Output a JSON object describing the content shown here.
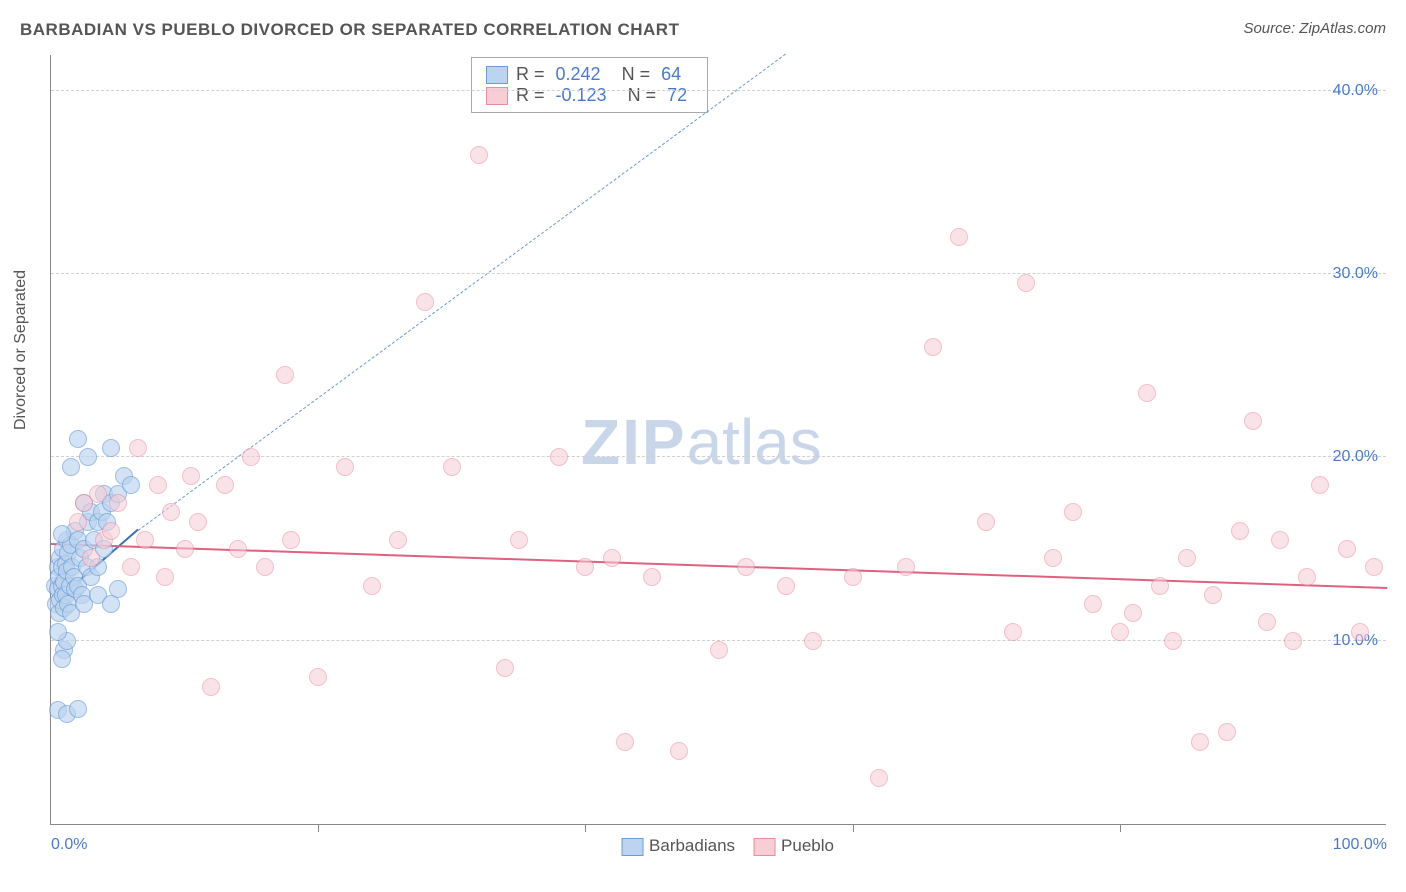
{
  "title": "BARBADIAN VS PUEBLO DIVORCED OR SEPARATED CORRELATION CHART",
  "source": "Source: ZipAtlas.com",
  "ylabel": "Divorced or Separated",
  "watermark": {
    "bold": "ZIP",
    "rest": "atlas"
  },
  "chart": {
    "type": "scatter",
    "xlim": [
      0,
      100
    ],
    "ylim": [
      0,
      42
    ],
    "yaxis_ticks": [
      10,
      20,
      30,
      40
    ],
    "yaxis_tick_labels": [
      "10.0%",
      "20.0%",
      "30.0%",
      "40.0%"
    ],
    "xaxis_ticks": [
      0,
      20,
      40,
      60,
      80,
      100
    ],
    "xaxis_tick_labels_shown": {
      "0": "0.0%",
      "100": "100.0%"
    },
    "background_color": "#ffffff",
    "grid_color": "#d0d0d0",
    "axis_color": "#888888",
    "label_color": "#4a7ac7",
    "marker_radius": 9,
    "marker_stroke_width": 1.5,
    "series": [
      {
        "name": "Barbadians",
        "fill": "#bcd4ef",
        "stroke": "#6a9bd8",
        "fill_opacity": 0.65,
        "R": "0.242",
        "N": "64",
        "trend": {
          "x1": 0.5,
          "y1": 12.2,
          "x2": 6.5,
          "y2": 16.0,
          "color": "#3a6fb5",
          "width": 2.5,
          "dash": false
        },
        "trend_ext": {
          "x1": 6.5,
          "y1": 16.0,
          "x2": 55,
          "y2": 42,
          "color": "#6a9bd8",
          "width": 1.5,
          "dash": true
        },
        "points": [
          [
            0.3,
            13.0
          ],
          [
            0.4,
            12.0
          ],
          [
            0.5,
            12.8
          ],
          [
            0.5,
            14.0
          ],
          [
            0.6,
            11.5
          ],
          [
            0.6,
            13.5
          ],
          [
            0.7,
            12.2
          ],
          [
            0.7,
            14.5
          ],
          [
            0.8,
            14.0
          ],
          [
            0.8,
            13.0
          ],
          [
            0.9,
            12.5
          ],
          [
            0.9,
            15.0
          ],
          [
            1.0,
            13.2
          ],
          [
            1.0,
            11.8
          ],
          [
            1.1,
            14.2
          ],
          [
            1.1,
            12.5
          ],
          [
            1.2,
            13.8
          ],
          [
            1.2,
            15.5
          ],
          [
            1.3,
            12.0
          ],
          [
            1.3,
            14.8
          ],
          [
            1.4,
            13.0
          ],
          [
            1.5,
            15.2
          ],
          [
            1.5,
            11.5
          ],
          [
            1.6,
            14.0
          ],
          [
            1.7,
            13.5
          ],
          [
            1.8,
            12.8
          ],
          [
            1.8,
            16.0
          ],
          [
            2.0,
            15.5
          ],
          [
            2.0,
            13.0
          ],
          [
            2.2,
            14.5
          ],
          [
            2.3,
            12.5
          ],
          [
            2.5,
            15.0
          ],
          [
            2.5,
            17.5
          ],
          [
            2.7,
            14.0
          ],
          [
            2.8,
            16.5
          ],
          [
            3.0,
            13.5
          ],
          [
            3.0,
            17.0
          ],
          [
            3.2,
            15.5
          ],
          [
            3.5,
            16.5
          ],
          [
            3.5,
            14.0
          ],
          [
            3.8,
            17.0
          ],
          [
            4.0,
            15.0
          ],
          [
            4.0,
            18.0
          ],
          [
            4.2,
            16.5
          ],
          [
            4.5,
            17.5
          ],
          [
            5.0,
            18.0
          ],
          [
            5.5,
            19.0
          ],
          [
            6.0,
            18.5
          ],
          [
            1.0,
            9.5
          ],
          [
            1.2,
            10.0
          ],
          [
            0.8,
            9.0
          ],
          [
            0.5,
            10.5
          ],
          [
            2.5,
            12.0
          ],
          [
            3.5,
            12.5
          ],
          [
            4.5,
            12.0
          ],
          [
            5.0,
            12.8
          ],
          [
            1.5,
            19.5
          ],
          [
            2.0,
            21.0
          ],
          [
            2.8,
            20.0
          ],
          [
            4.5,
            20.5
          ],
          [
            0.5,
            6.2
          ],
          [
            1.2,
            6.0
          ],
          [
            2.0,
            6.3
          ],
          [
            0.8,
            15.8
          ]
        ]
      },
      {
        "name": "Pueblo",
        "fill": "#f7cdd6",
        "stroke": "#e88ba0",
        "fill_opacity": 0.55,
        "R": "-0.123",
        "N": "72",
        "trend": {
          "x1": 0,
          "y1": 15.2,
          "x2": 100,
          "y2": 12.8,
          "color": "#e06080",
          "width": 2.5,
          "dash": false
        },
        "points": [
          [
            2.0,
            16.5
          ],
          [
            2.5,
            17.5
          ],
          [
            3.0,
            14.5
          ],
          [
            3.5,
            18.0
          ],
          [
            4.0,
            15.5
          ],
          [
            4.5,
            16.0
          ],
          [
            5.0,
            17.5
          ],
          [
            6.0,
            14.0
          ],
          [
            6.5,
            20.5
          ],
          [
            7.0,
            15.5
          ],
          [
            8.0,
            18.5
          ],
          [
            8.5,
            13.5
          ],
          [
            9.0,
            17.0
          ],
          [
            10.0,
            15.0
          ],
          [
            10.5,
            19.0
          ],
          [
            11.0,
            16.5
          ],
          [
            12.0,
            7.5
          ],
          [
            13.0,
            18.5
          ],
          [
            14.0,
            15.0
          ],
          [
            15.0,
            20.0
          ],
          [
            16.0,
            14.0
          ],
          [
            17.5,
            24.5
          ],
          [
            18.0,
            15.5
          ],
          [
            20.0,
            8.0
          ],
          [
            22.0,
            19.5
          ],
          [
            24.0,
            13.0
          ],
          [
            26.0,
            15.5
          ],
          [
            28.0,
            28.5
          ],
          [
            30.0,
            19.5
          ],
          [
            32.0,
            36.5
          ],
          [
            34.0,
            8.5
          ],
          [
            35.0,
            15.5
          ],
          [
            38.0,
            20.0
          ],
          [
            40.0,
            14.0
          ],
          [
            42.0,
            14.5
          ],
          [
            43.0,
            4.5
          ],
          [
            45.0,
            13.5
          ],
          [
            47.0,
            4.0
          ],
          [
            50.0,
            9.5
          ],
          [
            52.0,
            14.0
          ],
          [
            55.0,
            13.0
          ],
          [
            57.0,
            10.0
          ],
          [
            60.0,
            13.5
          ],
          [
            62.0,
            2.5
          ],
          [
            64.0,
            14.0
          ],
          [
            66.0,
            26.0
          ],
          [
            68.0,
            32.0
          ],
          [
            70.0,
            16.5
          ],
          [
            72.0,
            10.5
          ],
          [
            73.0,
            29.5
          ],
          [
            75.0,
            14.5
          ],
          [
            76.5,
            17.0
          ],
          [
            78.0,
            12.0
          ],
          [
            80.0,
            10.5
          ],
          [
            81.0,
            11.5
          ],
          [
            82.0,
            23.5
          ],
          [
            83.0,
            13.0
          ],
          [
            84.0,
            10.0
          ],
          [
            85.0,
            14.5
          ],
          [
            86.0,
            4.5
          ],
          [
            87.0,
            12.5
          ],
          [
            88.0,
            5.0
          ],
          [
            89.0,
            16.0
          ],
          [
            90.0,
            22.0
          ],
          [
            91.0,
            11.0
          ],
          [
            92.0,
            15.5
          ],
          [
            93.0,
            10.0
          ],
          [
            94.0,
            13.5
          ],
          [
            95.0,
            18.5
          ],
          [
            97.0,
            15.0
          ],
          [
            98.0,
            10.5
          ],
          [
            99.0,
            14.0
          ]
        ]
      }
    ]
  },
  "stats_box": {
    "R_label": "R =",
    "N_label": "N ="
  },
  "legend": {
    "items": [
      {
        "label": "Barbadians",
        "fill": "#bcd4ef",
        "stroke": "#6a9bd8"
      },
      {
        "label": "Pueblo",
        "fill": "#f7cdd6",
        "stroke": "#e88ba0"
      }
    ]
  }
}
